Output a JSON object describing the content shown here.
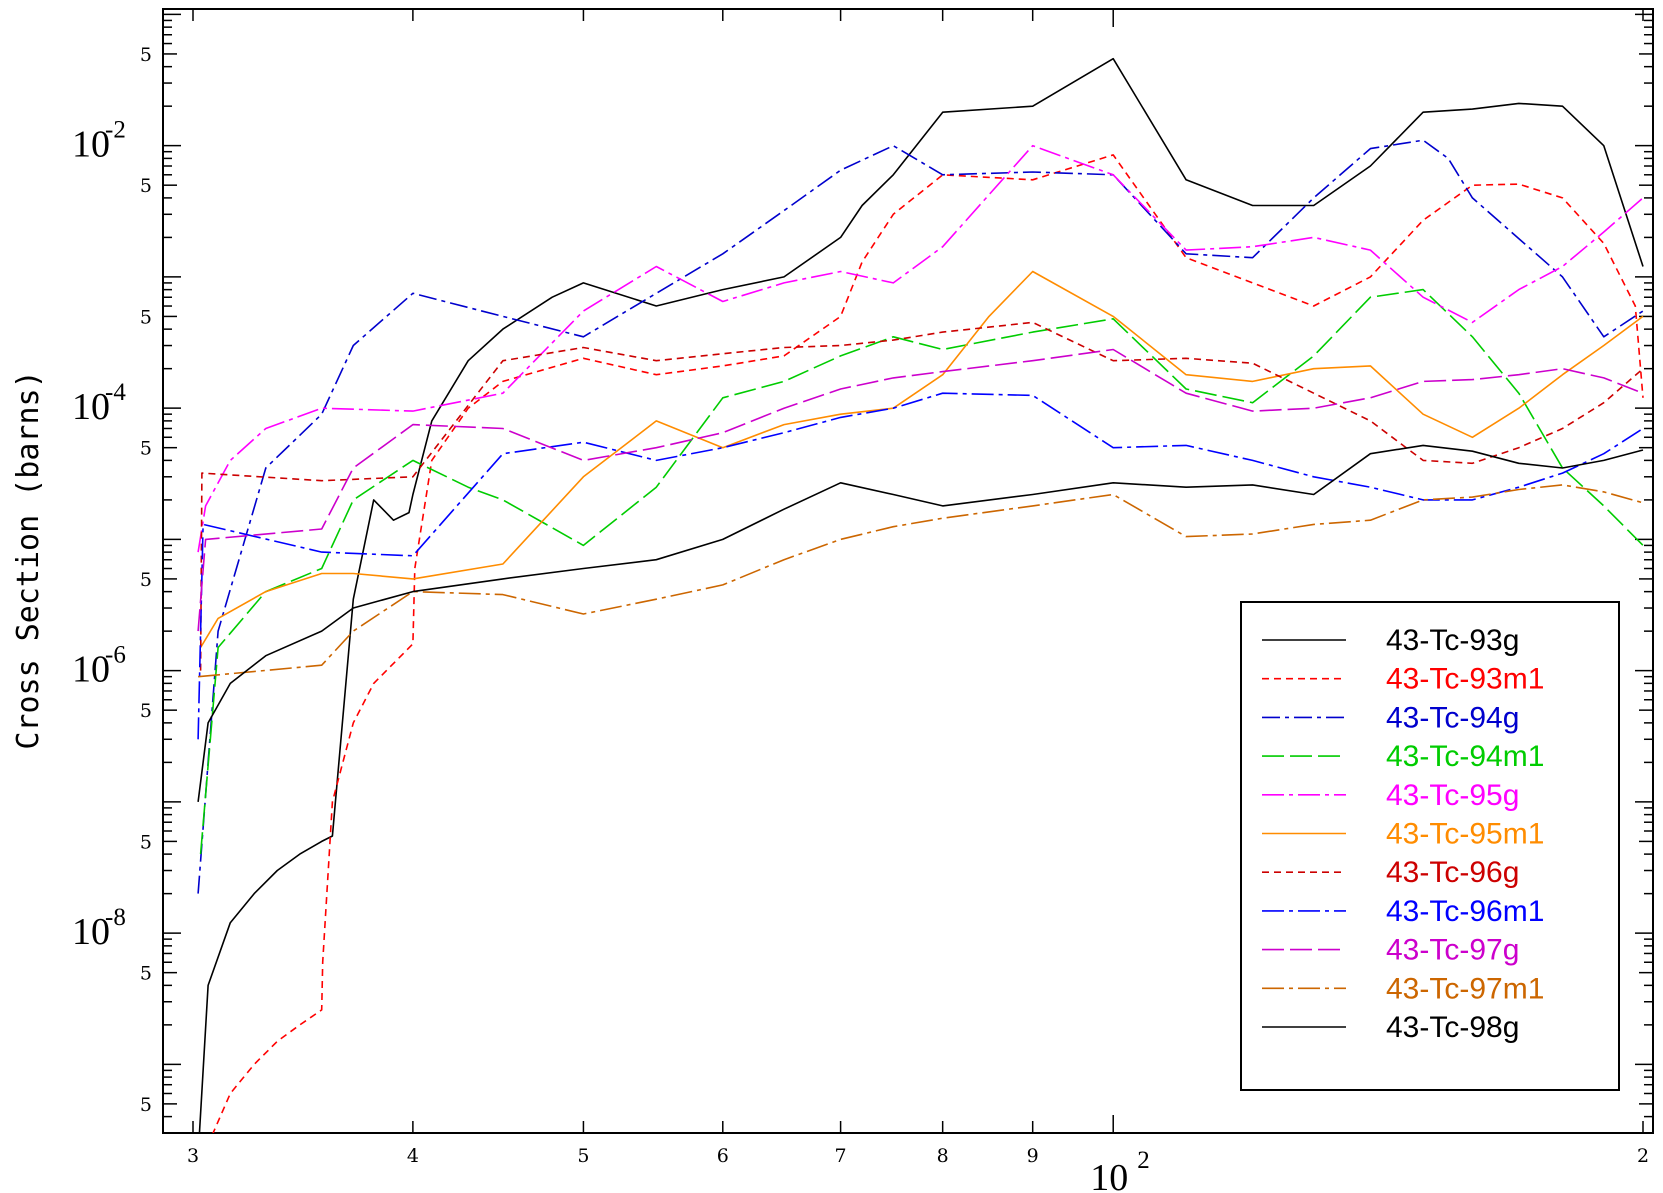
{
  "chart_data": {
    "type": "line",
    "ylabel": "Cross Section (barns)",
    "xlabel": "",
    "x_scale": "log",
    "y_scale": "log",
    "xlim": [
      30,
      200
    ],
    "ylim": [
      3e-10,
      0.11
    ],
    "x_ticks": [
      {
        "v": 30,
        "label": "3"
      },
      {
        "v": 40,
        "label": "4"
      },
      {
        "v": 50,
        "label": "5"
      },
      {
        "v": 60,
        "label": "6"
      },
      {
        "v": 70,
        "label": "7"
      },
      {
        "v": 80,
        "label": "8"
      },
      {
        "v": 90,
        "label": "9"
      },
      {
        "v": 200,
        "label": "2"
      }
    ],
    "x_decade_label": {
      "v": 100,
      "base": "10",
      "exp": "2"
    },
    "y_minor_labels": [
      {
        "v": 5e-10,
        "label": "5"
      },
      {
        "v": 5e-09,
        "label": "5"
      },
      {
        "v": 5e-08,
        "label": "5"
      },
      {
        "v": 5e-07,
        "label": "5"
      },
      {
        "v": 5e-06,
        "label": "5"
      },
      {
        "v": 5e-05,
        "label": "5"
      },
      {
        "v": 0.0005,
        "label": "5"
      },
      {
        "v": 0.005,
        "label": "5"
      },
      {
        "v": 0.05,
        "label": "5"
      }
    ],
    "y_decade_labels": [
      {
        "v": 0.01,
        "base": "10",
        "exp": "-2"
      },
      {
        "v": 0.0001,
        "base": "10",
        "exp": "-4"
      },
      {
        "v": 1e-06,
        "base": "10",
        "exp": "-6"
      },
      {
        "v": 1e-08,
        "base": "10",
        "exp": "-8"
      }
    ],
    "legend_position": "bottom-right",
    "series": [
      {
        "name": "43-Tc-93g",
        "color": "#000000",
        "dash": "",
        "x": [
          30.2,
          30.6,
          31.5,
          32.5,
          33.5,
          34.5,
          35.5,
          36,
          37,
          38,
          39,
          39.8,
          40,
          41,
          43,
          45,
          48,
          50,
          55,
          60,
          65,
          70,
          72,
          75,
          80,
          90,
          100,
          110,
          120,
          130,
          140,
          150,
          160,
          170,
          180,
          190,
          200
        ],
        "y": [
          2e-10,
          4e-09,
          1.2e-08,
          2e-08,
          3e-08,
          4e-08,
          5e-08,
          5.5e-08,
          3.5e-06,
          2e-05,
          1.4e-05,
          1.6e-05,
          2.2e-05,
          8e-05,
          0.00023,
          0.0004,
          0.0007,
          0.0009,
          0.0006,
          0.0008,
          0.001,
          0.002,
          0.0035,
          0.006,
          0.018,
          0.02,
          0.046,
          0.0055,
          0.0035,
          0.0035,
          0.007,
          0.018,
          0.019,
          0.021,
          0.02,
          0.01,
          0.0012
        ]
      },
      {
        "name": "43-Tc-93m1",
        "color": "#ff0000",
        "dash": "7,5",
        "x": [
          30.3,
          30.8,
          31.5,
          32.5,
          33.5,
          34.5,
          35.5,
          35.55,
          36,
          37,
          38,
          40,
          40.1,
          41,
          43,
          45,
          50,
          55,
          60,
          65,
          70,
          72,
          75,
          80,
          90,
          100,
          110,
          120,
          130,
          140,
          150,
          160,
          170,
          180,
          190,
          198,
          200
        ],
        "y": [
          2e-10,
          3e-10,
          6e-10,
          1e-09,
          1.5e-09,
          2e-09,
          2.6e-09,
          6e-09,
          1e-07,
          4e-07,
          8e-07,
          1.6e-06,
          6e-06,
          4e-05,
          0.0001,
          0.00016,
          0.00024,
          0.00018,
          0.00021,
          0.00025,
          0.0005,
          0.0013,
          0.003,
          0.006,
          0.0055,
          0.0085,
          0.0014,
          0.0009,
          0.0006,
          0.001,
          0.0027,
          0.005,
          0.0051,
          0.004,
          0.0018,
          0.0006,
          0.00012
        ]
      },
      {
        "name": "43-Tc-94g",
        "color": "#0000cd",
        "dash": "18,5,4,5",
        "x": [
          30.2,
          31,
          33,
          35.5,
          37,
          40,
          45,
          50,
          55,
          60,
          65,
          70,
          75,
          80,
          90,
          100,
          110,
          120,
          130,
          140,
          150,
          155,
          160,
          180,
          190,
          200
        ],
        "y": [
          2e-08,
          2e-06,
          3.5e-05,
          9e-05,
          0.0003,
          0.00075,
          0.0005,
          0.00035,
          0.00075,
          0.0015,
          0.0032,
          0.0065,
          0.01,
          0.006,
          0.0063,
          0.006,
          0.0015,
          0.0014,
          0.004,
          0.0095,
          0.011,
          0.008,
          0.004,
          0.001,
          0.00035,
          0.00055
        ]
      },
      {
        "name": "43-Tc-94m1",
        "color": "#00cc00",
        "dash": "22,6",
        "x": [
          30.3,
          31,
          33,
          35.5,
          37,
          40,
          43,
          45,
          50,
          55,
          60,
          65,
          70,
          75,
          80,
          90,
          100,
          110,
          120,
          130,
          140,
          150,
          160,
          170,
          180,
          190,
          200
        ],
        "y": [
          4e-08,
          1.5e-06,
          4e-06,
          6e-06,
          2e-05,
          4e-05,
          2.5e-05,
          2e-05,
          9e-06,
          2.5e-05,
          0.00012,
          0.00016,
          0.00025,
          0.00035,
          0.00028,
          0.00038,
          0.00048,
          0.00014,
          0.00011,
          0.00025,
          0.0007,
          0.0008,
          0.00035,
          0.00013,
          3.5e-05,
          1.8e-05,
          9e-06
        ]
      },
      {
        "name": "43-Tc-95g",
        "color": "#ff00ff",
        "dash": "22,5,4,5",
        "x": [
          30.2,
          30.5,
          31.5,
          33,
          35.5,
          40,
          45,
          50,
          55,
          60,
          65,
          70,
          75,
          80,
          90,
          100,
          110,
          120,
          130,
          140,
          150,
          160,
          170,
          180,
          190,
          200
        ],
        "y": [
          8e-06,
          1.8e-05,
          4e-05,
          7e-05,
          0.0001,
          9.5e-05,
          0.00013,
          0.00055,
          0.0012,
          0.00065,
          0.0009,
          0.0011,
          0.0009,
          0.0017,
          0.01,
          0.006,
          0.0016,
          0.0017,
          0.002,
          0.0016,
          0.0007,
          0.00045,
          0.0008,
          0.0012,
          0.0022,
          0.004
        ]
      },
      {
        "name": "43-Tc-95m1",
        "color": "#ff8c00",
        "dash": "",
        "x": [
          30.3,
          31,
          33,
          35.5,
          37,
          40,
          45,
          50,
          55,
          60,
          65,
          70,
          75,
          80,
          85,
          90,
          100,
          110,
          120,
          130,
          140,
          150,
          160,
          170,
          180,
          190,
          200
        ],
        "y": [
          1.5e-06,
          2.5e-06,
          4e-06,
          5.5e-06,
          5.5e-06,
          5e-06,
          6.5e-06,
          3e-05,
          8e-05,
          5e-05,
          7.5e-05,
          9e-05,
          0.0001,
          0.00018,
          0.0005,
          0.0011,
          0.0005,
          0.00018,
          0.00016,
          0.0002,
          0.00021,
          9e-05,
          6e-05,
          0.0001,
          0.00018,
          0.0003,
          0.0005
        ]
      },
      {
        "name": "43-Tc-96g",
        "color": "#cc0000",
        "dash": "7,5",
        "x": [
          30.3,
          30.35,
          35.5,
          40,
          45,
          50,
          55,
          60,
          65,
          70,
          75,
          80,
          90,
          100,
          110,
          120,
          130,
          140,
          150,
          160,
          170,
          180,
          190,
          200
        ],
        "y": [
          1e-06,
          3.2e-05,
          2.8e-05,
          3e-05,
          0.00023,
          0.00029,
          0.00023,
          0.00026,
          0.00029,
          0.0003,
          0.00033,
          0.00038,
          0.00045,
          0.00023,
          0.00024,
          0.00022,
          0.00013,
          8e-05,
          4e-05,
          3.8e-05,
          5e-05,
          7e-05,
          0.00011,
          0.0002
        ]
      },
      {
        "name": "43-Tc-96m1",
        "color": "#0000ff",
        "dash": "22,5,4,5",
        "x": [
          30.2,
          30.4,
          35.5,
          40,
          45,
          50,
          55,
          60,
          65,
          70,
          75,
          80,
          90,
          100,
          110,
          120,
          130,
          140,
          150,
          160,
          170,
          180,
          190,
          200
        ],
        "y": [
          3e-07,
          1.3e-05,
          8e-06,
          7.5e-06,
          4.5e-05,
          5.5e-05,
          4e-05,
          5e-05,
          6.5e-05,
          8.5e-05,
          0.0001,
          0.00013,
          0.000125,
          5e-05,
          5.2e-05,
          4e-05,
          3e-05,
          2.5e-05,
          2e-05,
          2e-05,
          2.5e-05,
          3.2e-05,
          4.5e-05,
          7e-05
        ]
      },
      {
        "name": "43-Tc-97g",
        "color": "#cc00cc",
        "dash": "22,6",
        "x": [
          30.2,
          30.5,
          35.5,
          37,
          40,
          45,
          50,
          55,
          60,
          65,
          70,
          75,
          80,
          90,
          100,
          110,
          120,
          130,
          140,
          150,
          160,
          170,
          180,
          190,
          200
        ],
        "y": [
          2e-06,
          1e-05,
          1.2e-05,
          3.5e-05,
          7.5e-05,
          7e-05,
          4e-05,
          5e-05,
          6.5e-05,
          0.0001,
          0.00014,
          0.00017,
          0.00019,
          0.00023,
          0.00028,
          0.00013,
          9.5e-05,
          0.0001,
          0.00012,
          0.00016,
          0.000165,
          0.00018,
          0.0002,
          0.00017,
          0.00013
        ]
      },
      {
        "name": "43-Tc-97m1",
        "color": "#cc6600",
        "dash": "22,5,4,5",
        "x": [
          30.2,
          35.5,
          37,
          40,
          45,
          50,
          55,
          60,
          65,
          70,
          75,
          80,
          90,
          100,
          110,
          120,
          130,
          140,
          150,
          160,
          170,
          180,
          190,
          200
        ],
        "y": [
          9e-07,
          1.1e-06,
          2e-06,
          4e-06,
          3.8e-06,
          2.7e-06,
          3.5e-06,
          4.5e-06,
          7e-06,
          1e-05,
          1.25e-05,
          1.45e-05,
          1.8e-05,
          2.2e-05,
          1.05e-05,
          1.1e-05,
          1.3e-05,
          1.4e-05,
          2e-05,
          2.1e-05,
          2.4e-05,
          2.6e-05,
          2.3e-05,
          1.9e-05
        ]
      },
      {
        "name": "43-Tc-98g",
        "color": "#000000",
        "dash": "",
        "x": [
          30.2,
          30.6,
          31.5,
          33,
          35.5,
          37,
          40,
          45,
          50,
          55,
          60,
          65,
          70,
          75,
          80,
          90,
          100,
          110,
          120,
          130,
          140,
          150,
          160,
          170,
          180,
          190,
          200
        ],
        "y": [
          1e-07,
          4e-07,
          8e-07,
          1.3e-06,
          2e-06,
          3e-06,
          4e-06,
          5e-06,
          6e-06,
          7e-06,
          1e-05,
          1.7e-05,
          2.7e-05,
          2.2e-05,
          1.8e-05,
          2.2e-05,
          2.7e-05,
          2.5e-05,
          2.6e-05,
          2.2e-05,
          4.5e-05,
          5.2e-05,
          4.7e-05,
          3.8e-05,
          3.5e-05,
          4e-05,
          4.8e-05
        ]
      }
    ]
  }
}
